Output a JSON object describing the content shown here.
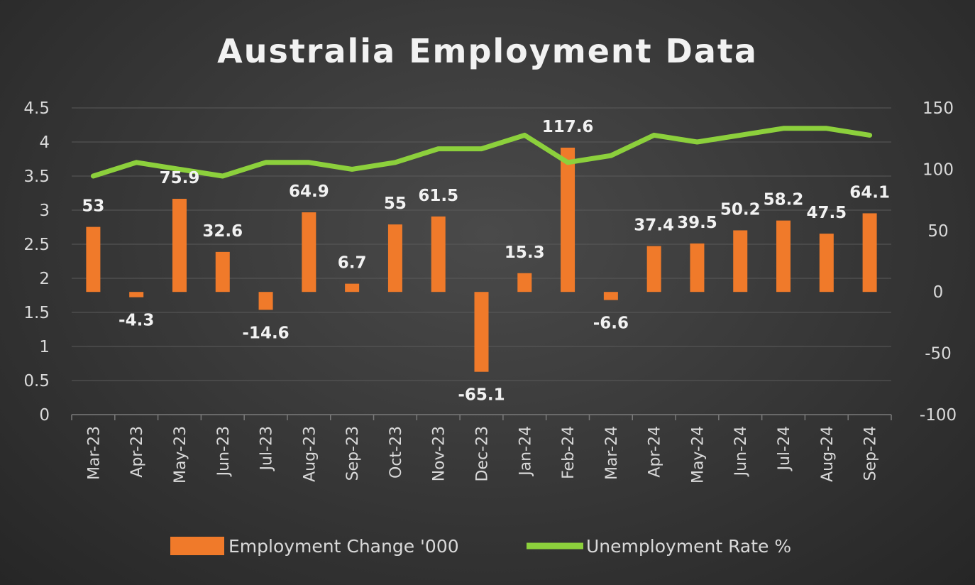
{
  "chart_data": {
    "type": "bar+line",
    "title": "Australia Employment Data",
    "categories": [
      "Mar-23",
      "Apr-23",
      "May-23",
      "Jun-23",
      "Jul-23",
      "Aug-23",
      "Sep-23",
      "Oct-23",
      "Nov-23",
      "Dec-23",
      "Jan-24",
      "Feb-24",
      "Mar-24",
      "Apr-24",
      "May-24",
      "Jun-24",
      "Jul-24",
      "Aug-24",
      "Sep-24"
    ],
    "series": [
      {
        "name": "Employment Change '000",
        "type": "bar",
        "axis": "right",
        "color": "#f07a2a",
        "values": [
          53,
          -4.3,
          75.9,
          32.6,
          -14.6,
          64.9,
          6.7,
          55,
          61.5,
          -65.1,
          15.3,
          117.6,
          -6.6,
          37.4,
          39.5,
          50.2,
          58.2,
          47.5,
          64.1
        ],
        "labels": [
          "53",
          "-4.3",
          "75.9",
          "32.6",
          "-14.6",
          "64.9",
          "6.7",
          "55",
          "61.5",
          "-65.1",
          "15.3",
          "117.6",
          "-6.6",
          "37.4",
          "39.5",
          "50.2",
          "58.2",
          "47.5",
          "64.1"
        ]
      },
      {
        "name": "Unemployment Rate %",
        "type": "line",
        "axis": "left",
        "color": "#8cd03c",
        "values": [
          3.5,
          3.7,
          3.6,
          3.5,
          3.7,
          3.7,
          3.6,
          3.7,
          3.9,
          3.9,
          4.1,
          3.7,
          3.8,
          4.1,
          4.0,
          4.1,
          4.2,
          4.2,
          4.1
        ]
      }
    ],
    "y_left": {
      "min": 0,
      "max": 4.5,
      "ticks": [
        "0",
        "0.5",
        "1",
        "1.5",
        "2",
        "2.5",
        "3",
        "3.5",
        "4",
        "4.5"
      ]
    },
    "y_right": {
      "min": -100,
      "max": 150,
      "ticks": [
        "-100",
        "-50",
        "0",
        "50",
        "100",
        "150"
      ]
    },
    "grid": true,
    "legend": "bottom"
  }
}
